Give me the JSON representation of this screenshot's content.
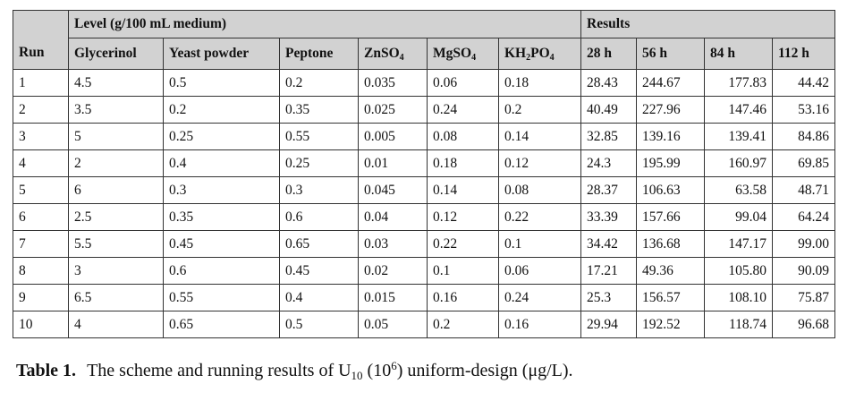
{
  "table": {
    "run_header": "Run",
    "level_header": "Level (g/100 mL medium)",
    "results_header": "Results",
    "level_cols": [
      {
        "text": "Glycerinol"
      },
      {
        "text": "Yeast powder"
      },
      {
        "text": "Peptone"
      },
      {
        "text": "ZnSO",
        "sub": "4"
      },
      {
        "text": "MgSO",
        "sub": "4"
      },
      {
        "text": "KH",
        "sub": "2",
        "text2": "PO",
        "sub2": "4"
      }
    ],
    "result_cols": [
      "28 h",
      "56 h",
      "84 h",
      "112 h"
    ],
    "rows": [
      [
        "1",
        "4.5",
        "0.5",
        "0.2",
        "0.035",
        "0.06",
        "0.18",
        "28.43",
        "244.67",
        "177.83",
        "44.42"
      ],
      [
        "2",
        "3.5",
        "0.2",
        "0.35",
        "0.025",
        "0.24",
        "0.2",
        "40.49",
        "227.96",
        "147.46",
        "53.16"
      ],
      [
        "3",
        "5",
        "0.25",
        "0.55",
        "0.005",
        "0.08",
        "0.14",
        "32.85",
        "139.16",
        "139.41",
        "84.86"
      ],
      [
        "4",
        "2",
        "0.4",
        "0.25",
        "0.01",
        "0.18",
        "0.12",
        "24.3",
        "195.99",
        "160.97",
        "69.85"
      ],
      [
        "5",
        "6",
        "0.3",
        "0.3",
        "0.045",
        "0.14",
        "0.08",
        "28.37",
        "106.63",
        "63.58",
        "48.71"
      ],
      [
        "6",
        "2.5",
        "0.35",
        "0.6",
        "0.04",
        "0.12",
        "0.22",
        "33.39",
        "157.66",
        "99.04",
        "64.24"
      ],
      [
        "7",
        "5.5",
        "0.45",
        "0.65",
        "0.03",
        "0.22",
        "0.1",
        "34.42",
        "136.68",
        "147.17",
        "99.00"
      ],
      [
        "8",
        "3",
        "0.6",
        "0.45",
        "0.02",
        "0.1",
        "0.06",
        "17.21",
        "49.36",
        "105.80",
        "90.09"
      ],
      [
        "9",
        "6.5",
        "0.55",
        "0.4",
        "0.015",
        "0.16",
        "0.24",
        "25.3",
        "156.57",
        "108.10",
        "75.87"
      ],
      [
        "10",
        "4",
        "0.65",
        "0.5",
        "0.05",
        "0.2",
        "0.16",
        "29.94",
        "192.52",
        "118.74",
        "96.68"
      ]
    ]
  },
  "caption": {
    "label": "Table 1.",
    "text_before": "The scheme and running results of U",
    "u_sub": "10",
    "text_mid": " (10",
    "sup": "6",
    "text_after": ") uniform-design (μg/L)."
  }
}
